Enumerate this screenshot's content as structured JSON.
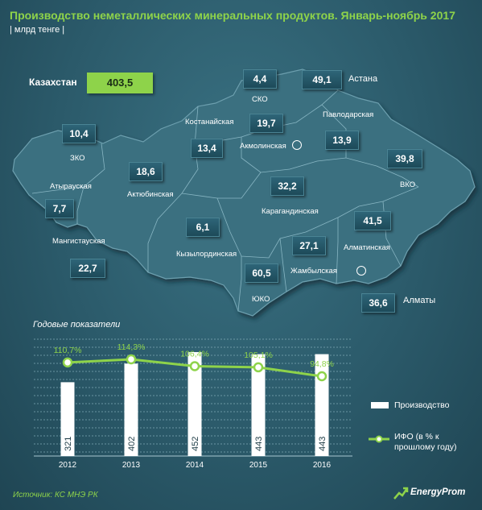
{
  "header": {
    "title": "Производство неметаллических минеральных продуктов. Январь-ноябрь 2017",
    "subtitle": "| млрд тенге |"
  },
  "summary": {
    "label": "Казахстан",
    "value": "403,5"
  },
  "regions": [
    {
      "name": "СКО",
      "value": "4,4"
    },
    {
      "name": "Астана",
      "value": "49,1"
    },
    {
      "name": "Костанайская",
      "value": "13,4"
    },
    {
      "name": "Акмолинская",
      "value": "19,7"
    },
    {
      "name": "Павлодарская",
      "value": "13,9"
    },
    {
      "name": "ЗКО",
      "value": "10,4"
    },
    {
      "name": "Актюбинская",
      "value": "18,6"
    },
    {
      "name": "Атырауская",
      "value": "7,7"
    },
    {
      "name": "ВКО",
      "value": "39,8"
    },
    {
      "name": "Карагандинская",
      "value": "32,2"
    },
    {
      "name": "Мангистауская",
      "value": "22,7"
    },
    {
      "name": "Кызылординская",
      "value": "6,1"
    },
    {
      "name": "Алматинская",
      "value": "41,5"
    },
    {
      "name": "Жамбылская",
      "value": "27,1"
    },
    {
      "name": "ЮКО",
      "value": "60,5"
    },
    {
      "name": "Алматы",
      "value": "36,6"
    }
  ],
  "chart_data": {
    "type": "bar",
    "title": "Годовые показатели",
    "categories": [
      "2012",
      "2013",
      "2014",
      "2015",
      "2016"
    ],
    "series": [
      {
        "name": "Производство",
        "kind": "bar",
        "values": [
          321,
          402,
          452,
          443,
          443
        ],
        "labels": [
          "321",
          "402",
          "452",
          "443",
          "443"
        ],
        "color": "#ffffff"
      },
      {
        "name": "ИФО (в % к прошлому году)",
        "kind": "line",
        "values": [
          110.7,
          114.3,
          106.4,
          105.1,
          94.8
        ],
        "labels": [
          "110,7%",
          "114,3%",
          "106,4%",
          "105,1%",
          "94,8%"
        ],
        "color": "#8ed34a"
      }
    ],
    "grid": true,
    "legend": "right"
  },
  "legend": {
    "bar_label": "Производство",
    "line_label": "ИФО (в % к прошлому году)"
  },
  "footer": {
    "source": "Источник: КС МНЭ РК",
    "brand": "EnergyProm"
  },
  "colors": {
    "accent": "#8ed34a",
    "background": "#2c5b6b",
    "text": "#ffffff"
  }
}
